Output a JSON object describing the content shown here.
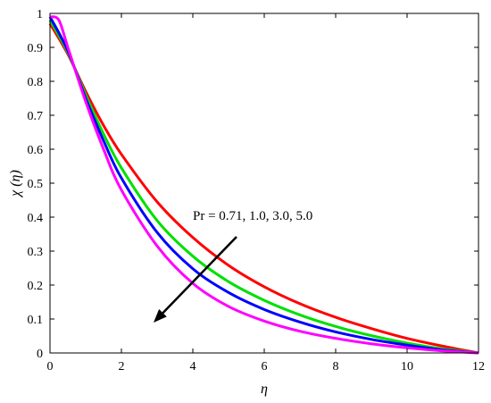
{
  "chart_data": {
    "type": "line",
    "title": "",
    "xlabel": "η",
    "ylabel": "χ (η)",
    "xlim": [
      0,
      12
    ],
    "ylim": [
      0,
      1
    ],
    "xticks": [
      0,
      2,
      4,
      6,
      8,
      10,
      12
    ],
    "yticks": [
      0,
      0.1,
      0.2,
      0.3,
      0.4,
      0.5,
      0.6,
      0.7,
      0.8,
      0.9,
      1
    ],
    "grid": false,
    "legend": "none",
    "annotation": {
      "text": "Pr = 0.71, 1.0, 3.0, 5.0",
      "arrow": "pointing toward increasing Pr"
    },
    "series": [
      {
        "color": "#ff0000",
        "x": [
          0,
          0.5,
          1,
          1.5,
          2,
          3,
          4,
          5,
          6,
          7,
          8,
          9,
          10,
          11,
          12
        ],
        "y": [
          0.97,
          0.88,
          0.77,
          0.67,
          0.585,
          0.445,
          0.34,
          0.258,
          0.195,
          0.145,
          0.105,
          0.072,
          0.043,
          0.02,
          0.0
        ]
      },
      {
        "color": "#00e000",
        "x": [
          0,
          0.5,
          1,
          1.5,
          2,
          3,
          4,
          5,
          6,
          7,
          8,
          9,
          10,
          11,
          12
        ],
        "y": [
          0.98,
          0.885,
          0.76,
          0.645,
          0.545,
          0.39,
          0.285,
          0.21,
          0.155,
          0.112,
          0.078,
          0.051,
          0.029,
          0.012,
          0.0
        ]
      },
      {
        "color": "#0000ff",
        "x": [
          0,
          0.5,
          1,
          1.5,
          2,
          3,
          4,
          5,
          6,
          7,
          8,
          9,
          10,
          11,
          12
        ],
        "y": [
          0.99,
          0.89,
          0.75,
          0.625,
          0.515,
          0.355,
          0.248,
          0.178,
          0.128,
          0.091,
          0.062,
          0.04,
          0.023,
          0.009,
          0.0
        ]
      },
      {
        "color": "#ff00ff",
        "x": [
          0,
          0.25,
          0.5,
          1,
          1.5,
          2,
          3,
          4,
          5,
          6,
          7,
          8,
          9,
          10,
          11,
          12
        ],
        "y": [
          0.99,
          0.98,
          0.9,
          0.74,
          0.6,
          0.48,
          0.315,
          0.205,
          0.137,
          0.094,
          0.064,
          0.043,
          0.027,
          0.015,
          0.006,
          0.0
        ]
      }
    ]
  }
}
